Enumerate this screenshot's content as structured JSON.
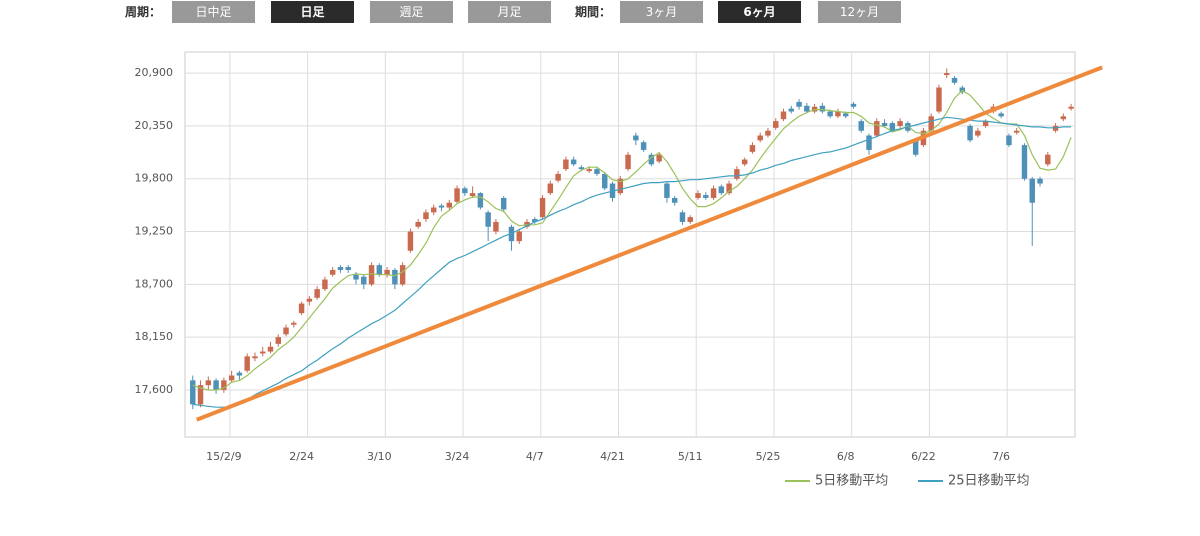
{
  "ui": {
    "period_label": "周期：",
    "period_buttons": [
      "日中足",
      "日足",
      "週足",
      "月足"
    ],
    "range_label": "期間：",
    "range_buttons": [
      "3ヶ月",
      "6ヶ月",
      "12ヶ月"
    ]
  },
  "chart_data": {
    "type": "candlestick",
    "up_color": "#c96a4f",
    "down_color": "#4f90b8",
    "grid": true,
    "xlim": [
      -1,
      113.5
    ],
    "ylim": [
      17110,
      21120
    ],
    "yticks": [
      {
        "value": 17600,
        "label": "17,600"
      },
      {
        "value": 18150,
        "label": "18,150"
      },
      {
        "value": 18700,
        "label": "18,700"
      },
      {
        "value": 19250,
        "label": "19,250"
      },
      {
        "value": 19800,
        "label": "19,800"
      },
      {
        "value": 20350,
        "label": "20,350"
      },
      {
        "value": 20900,
        "label": "20,900"
      }
    ],
    "xticks": [
      {
        "value": 4,
        "label": "15/2/9"
      },
      {
        "value": 14,
        "label": "2/24"
      },
      {
        "value": 24,
        "label": "3/10"
      },
      {
        "value": 34,
        "label": "3/24"
      },
      {
        "value": 44,
        "label": "4/7"
      },
      {
        "value": 54,
        "label": "4/21"
      },
      {
        "value": 64,
        "label": "5/11"
      },
      {
        "value": 74,
        "label": "5/25"
      },
      {
        "value": 84,
        "label": "6/8"
      },
      {
        "value": 94,
        "label": "6/22"
      },
      {
        "value": 104,
        "label": "7/6"
      }
    ],
    "ohlc": [
      [
        17700,
        17750,
        17400,
        17450
      ],
      [
        17450,
        17700,
        17420,
        17650
      ],
      [
        17650,
        17740,
        17600,
        17700
      ],
      [
        17700,
        17720,
        17560,
        17600
      ],
      [
        17600,
        17730,
        17570,
        17700
      ],
      [
        17700,
        17800,
        17680,
        17750
      ],
      [
        17780,
        17800,
        17700,
        17750
      ],
      [
        17800,
        17980,
        17780,
        17950
      ],
      [
        17930,
        17990,
        17900,
        17950
      ],
      [
        17980,
        18050,
        17950,
        18000
      ],
      [
        18000,
        18100,
        17980,
        18050
      ],
      [
        18080,
        18180,
        18050,
        18150
      ],
      [
        18180,
        18280,
        18160,
        18250
      ],
      [
        18280,
        18320,
        18250,
        18300
      ],
      [
        18400,
        18520,
        18380,
        18500
      ],
      [
        18520,
        18580,
        18480,
        18550
      ],
      [
        18560,
        18680,
        18540,
        18650
      ],
      [
        18650,
        18780,
        18630,
        18750
      ],
      [
        18800,
        18880,
        18780,
        18850
      ],
      [
        18880,
        18900,
        18820,
        18850
      ],
      [
        18880,
        18900,
        18820,
        18850
      ],
      [
        18800,
        18830,
        18700,
        18750
      ],
      [
        18780,
        18800,
        18650,
        18700
      ],
      [
        18700,
        18930,
        18680,
        18900
      ],
      [
        18900,
        18920,
        18780,
        18800
      ],
      [
        18800,
        18880,
        18770,
        18850
      ],
      [
        18850,
        18870,
        18650,
        18700
      ],
      [
        18700,
        18930,
        18680,
        18900
      ],
      [
        19050,
        19280,
        19030,
        19250
      ],
      [
        19300,
        19380,
        19280,
        19350
      ],
      [
        19380,
        19480,
        19350,
        19450
      ],
      [
        19450,
        19530,
        19420,
        19500
      ],
      [
        19520,
        19540,
        19460,
        19500
      ],
      [
        19500,
        19580,
        19480,
        19550
      ],
      [
        19560,
        19730,
        19540,
        19700
      ],
      [
        19700,
        19720,
        19620,
        19650
      ],
      [
        19620,
        19720,
        19600,
        19650
      ],
      [
        19650,
        19660,
        19480,
        19500
      ],
      [
        19450,
        19470,
        19150,
        19300
      ],
      [
        19250,
        19380,
        19220,
        19350
      ],
      [
        19600,
        19620,
        19450,
        19480
      ],
      [
        19300,
        19320,
        19050,
        19150
      ],
      [
        19150,
        19280,
        19120,
        19250
      ],
      [
        19300,
        19380,
        19280,
        19350
      ],
      [
        19380,
        19400,
        19330,
        19350
      ],
      [
        19400,
        19630,
        19380,
        19600
      ],
      [
        19650,
        19780,
        19630,
        19750
      ],
      [
        19780,
        19880,
        19760,
        19850
      ],
      [
        19900,
        20030,
        19880,
        20000
      ],
      [
        20000,
        20030,
        19930,
        19950
      ],
      [
        19920,
        19940,
        19880,
        19900
      ],
      [
        19880,
        19930,
        19860,
        19900
      ],
      [
        19900,
        19920,
        19830,
        19850
      ],
      [
        19850,
        19870,
        19680,
        19700
      ],
      [
        19750,
        19770,
        19560,
        19600
      ],
      [
        19650,
        19830,
        19630,
        19800
      ],
      [
        19900,
        20080,
        19880,
        20050
      ],
      [
        20250,
        20280,
        20150,
        20200
      ],
      [
        20180,
        20200,
        20080,
        20100
      ],
      [
        20050,
        20070,
        19930,
        19950
      ],
      [
        19980,
        20080,
        19960,
        20050
      ],
      [
        19750,
        19770,
        19550,
        19600
      ],
      [
        19600,
        19620,
        19520,
        19550
      ],
      [
        19450,
        19470,
        19320,
        19350
      ],
      [
        19350,
        19420,
        19330,
        19400
      ],
      [
        19600,
        19680,
        19580,
        19650
      ],
      [
        19630,
        19660,
        19580,
        19600
      ],
      [
        19600,
        19730,
        19580,
        19700
      ],
      [
        19720,
        19740,
        19630,
        19650
      ],
      [
        19650,
        19780,
        19630,
        19750
      ],
      [
        19800,
        19930,
        19780,
        19900
      ],
      [
        19950,
        20020,
        19930,
        20000
      ],
      [
        20080,
        20180,
        20060,
        20150
      ],
      [
        20200,
        20280,
        20180,
        20250
      ],
      [
        20250,
        20330,
        20230,
        20300
      ],
      [
        20330,
        20430,
        20310,
        20400
      ],
      [
        20420,
        20530,
        20400,
        20500
      ],
      [
        20530,
        20560,
        20480,
        20500
      ],
      [
        20600,
        20630,
        20520,
        20550
      ],
      [
        20560,
        20590,
        20480,
        20500
      ],
      [
        20500,
        20580,
        20480,
        20550
      ],
      [
        20560,
        20590,
        20480,
        20500
      ],
      [
        20500,
        20520,
        20430,
        20450
      ],
      [
        20450,
        20530,
        20430,
        20500
      ],
      [
        20480,
        20500,
        20430,
        20450
      ],
      [
        20580,
        20600,
        20530,
        20550
      ],
      [
        20400,
        20420,
        20280,
        20300
      ],
      [
        20250,
        20270,
        20050,
        20100
      ],
      [
        20250,
        20430,
        20230,
        20400
      ],
      [
        20380,
        20420,
        20330,
        20350
      ],
      [
        20380,
        20400,
        20280,
        20300
      ],
      [
        20350,
        20430,
        20330,
        20400
      ],
      [
        20380,
        20400,
        20280,
        20300
      ],
      [
        20200,
        20220,
        20030,
        20050
      ],
      [
        20150,
        20330,
        20130,
        20300
      ],
      [
        20300,
        20480,
        20280,
        20450
      ],
      [
        20500,
        20780,
        20480,
        20750
      ],
      [
        20880,
        20950,
        20850,
        20900
      ],
      [
        20850,
        20870,
        20780,
        20800
      ],
      [
        20750,
        20770,
        20680,
        20700
      ],
      [
        20350,
        20370,
        20180,
        20200
      ],
      [
        20250,
        20330,
        20230,
        20300
      ],
      [
        20350,
        20420,
        20330,
        20400
      ],
      [
        20500,
        20580,
        20480,
        20550
      ],
      [
        20480,
        20500,
        20430,
        20450
      ],
      [
        20250,
        20270,
        20130,
        20150
      ],
      [
        20280,
        20330,
        20260,
        20300
      ],
      [
        20150,
        20170,
        19780,
        19800
      ],
      [
        19800,
        19820,
        19100,
        19550
      ],
      [
        19800,
        19820,
        19720,
        19750
      ],
      [
        19950,
        20080,
        19930,
        20050
      ],
      [
        20300,
        20380,
        20280,
        20350
      ],
      [
        20420,
        20480,
        20400,
        20450
      ],
      [
        20530,
        20580,
        20510,
        20550
      ]
    ],
    "series": [
      {
        "name": "5日移動平均",
        "color": "#9bc15a",
        "values": [
          17650,
          17620,
          17600,
          17600,
          17620,
          17680,
          17700,
          17750,
          17820,
          17880,
          17940,
          18020,
          18080,
          18150,
          18250,
          18350,
          18450,
          18550,
          18660,
          18730,
          18790,
          18810,
          18800,
          18810,
          18800,
          18800,
          18790,
          18830,
          18900,
          19010,
          19130,
          19290,
          19410,
          19470,
          19540,
          19580,
          19610,
          19610,
          19560,
          19490,
          19460,
          19360,
          19310,
          19320,
          19320,
          19340,
          19460,
          19580,
          19710,
          19830,
          19890,
          19920,
          19920,
          19860,
          19790,
          19770,
          19800,
          19870,
          19950,
          20020,
          20070,
          19980,
          19850,
          19700,
          19590,
          19510,
          19510,
          19540,
          19600,
          19670,
          19720,
          19800,
          19890,
          20010,
          20120,
          20220,
          20320,
          20390,
          20450,
          20490,
          20520,
          20520,
          20510,
          20500,
          20490,
          20490,
          20450,
          20380,
          20360,
          20340,
          20290,
          20310,
          20350,
          20280,
          20270,
          20300,
          20370,
          20490,
          20640,
          20720,
          20670,
          20580,
          20480,
          20430,
          20380,
          20370,
          20370,
          20250,
          20050,
          19910,
          19890,
          19900,
          20030,
          20230
        ]
      },
      {
        "name": "25日移動平均",
        "color": "#3fa0c0",
        "values": [
          17450,
          17440,
          17430,
          17420,
          17420,
          17420,
          17460,
          17500,
          17550,
          17590,
          17630,
          17670,
          17720,
          17760,
          17800,
          17860,
          17910,
          17970,
          18030,
          18080,
          18140,
          18190,
          18240,
          18290,
          18330,
          18380,
          18430,
          18500,
          18570,
          18640,
          18720,
          18790,
          18860,
          18930,
          18970,
          19000,
          19040,
          19080,
          19120,
          19160,
          19200,
          19230,
          19270,
          19310,
          19350,
          19380,
          19420,
          19460,
          19490,
          19530,
          19560,
          19600,
          19630,
          19650,
          19670,
          19690,
          19710,
          19730,
          19750,
          19760,
          19760,
          19770,
          19770,
          19780,
          19790,
          19790,
          19800,
          19810,
          19820,
          19830,
          19830,
          19840,
          19860,
          19890,
          19910,
          19940,
          19960,
          19990,
          20010,
          20030,
          20050,
          20070,
          20080,
          20100,
          20120,
          20150,
          20180,
          20210,
          20240,
          20270,
          20300,
          20320,
          20340,
          20360,
          20380,
          20400,
          20420,
          20440,
          20430,
          20420,
          20410,
          20400,
          20400,
          20390,
          20380,
          20370,
          20360,
          20350,
          20340,
          20340,
          20330,
          20330,
          20340,
          20340
        ]
      }
    ],
    "trendline": {
      "color": "#ef8a3c",
      "x": [
        0.5,
        117
      ],
      "y": [
        17290,
        20960
      ]
    }
  }
}
